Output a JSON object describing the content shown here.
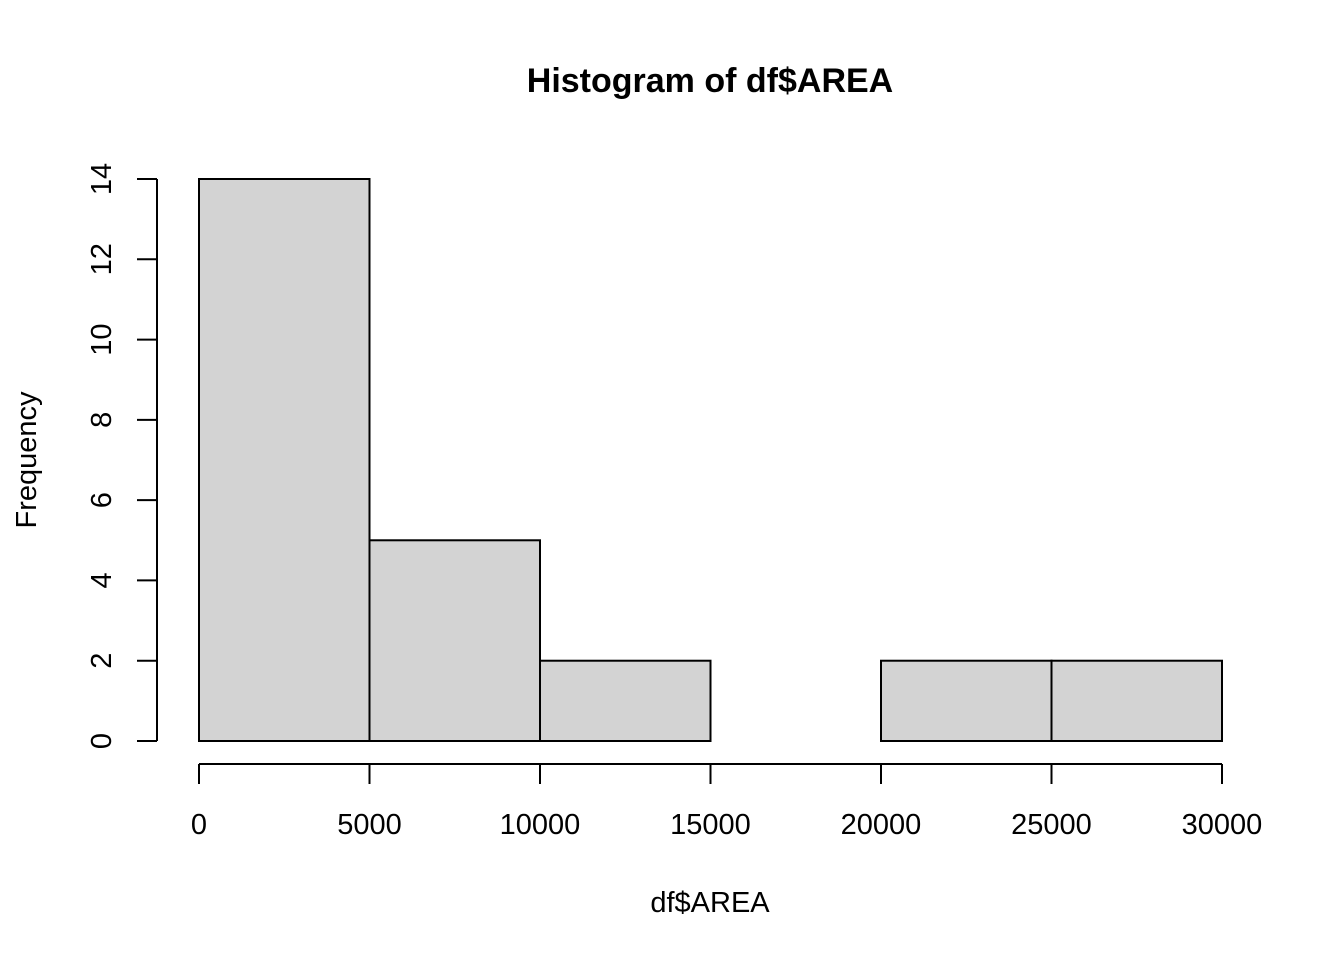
{
  "chart_data": {
    "type": "bar",
    "subtype": "histogram",
    "title": "Histogram of df$AREA",
    "xlabel": "df$AREA",
    "ylabel": "Frequency",
    "bins": [
      {
        "start": 0,
        "end": 5000,
        "count": 14
      },
      {
        "start": 5000,
        "end": 10000,
        "count": 5
      },
      {
        "start": 10000,
        "end": 15000,
        "count": 2
      },
      {
        "start": 15000,
        "end": 20000,
        "count": 0
      },
      {
        "start": 20000,
        "end": 25000,
        "count": 2
      },
      {
        "start": 25000,
        "end": 30000,
        "count": 2
      }
    ],
    "xlim": [
      0,
      30000
    ],
    "ylim": [
      0,
      14
    ],
    "x_ticks": [
      0,
      5000,
      10000,
      15000,
      20000,
      25000,
      30000
    ],
    "y_ticks": [
      0,
      2,
      4,
      6,
      8,
      10,
      12,
      14
    ],
    "bar_color": "#d3d3d3",
    "edge_color": "#000000",
    "grid": false,
    "legend": "none"
  }
}
